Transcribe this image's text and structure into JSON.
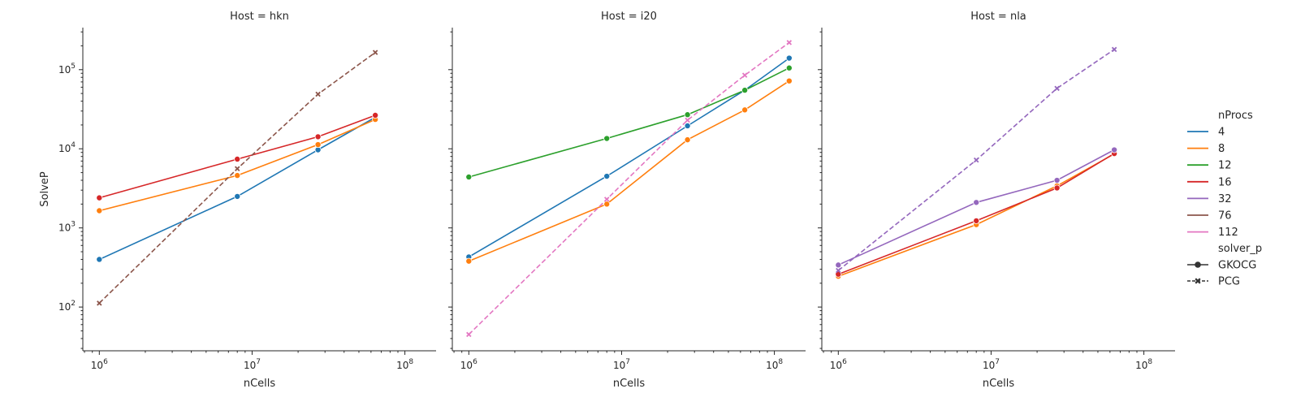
{
  "chart_data": {
    "type": "line",
    "xscale": "log",
    "yscale": "log",
    "xlim": [
      780000,
      160000000
    ],
    "ylim": [
      28,
      340000
    ],
    "xlabel": "nCells",
    "ylabel": "SolveP",
    "grid": false,
    "legend_placement": "right",
    "legend": {
      "hue_title": "nProcs",
      "style_title": "solver_p",
      "hue_entries": [
        {
          "label": "4",
          "color": "#1f77b4"
        },
        {
          "label": "8",
          "color": "#ff7f0e"
        },
        {
          "label": "12",
          "color": "#2ca02c"
        },
        {
          "label": "16",
          "color": "#d62728"
        },
        {
          "label": "32",
          "color": "#9467bd"
        },
        {
          "label": "76",
          "color": "#8c564b"
        },
        {
          "label": "112",
          "color": "#e377c2"
        }
      ],
      "style_entries": [
        {
          "label": "GKOCG",
          "marker": "circle",
          "dash": "solid"
        },
        {
          "label": "PCG",
          "marker": "x",
          "dash": "dashed"
        }
      ]
    },
    "panels": [
      {
        "title": "Host = hkn",
        "series": [
          {
            "nProcs": "4",
            "solver": "GKOCG",
            "x": [
              1000000,
              8000000,
              27000000,
              64000000
            ],
            "y": [
              400,
              2500,
              9700,
              25000
            ]
          },
          {
            "nProcs": "8",
            "solver": "GKOCG",
            "x": [
              1000000,
              8000000,
              27000000,
              64000000
            ],
            "y": [
              1650,
              4600,
              11300,
              23500
            ]
          },
          {
            "nProcs": "16",
            "solver": "GKOCG",
            "x": [
              1000000,
              8000000,
              27000000,
              64000000
            ],
            "y": [
              2400,
              7400,
              14200,
              26500
            ]
          },
          {
            "nProcs": "76",
            "solver": "PCG",
            "x": [
              1000000,
              8000000,
              27000000,
              64000000
            ],
            "y": [
              112,
              5600,
              49000,
              165000
            ]
          }
        ]
      },
      {
        "title": "Host = i20",
        "series": [
          {
            "nProcs": "4",
            "solver": "GKOCG",
            "x": [
              1000000,
              8000000,
              27000000,
              64000000,
              125000000
            ],
            "y": [
              430,
              4500,
              19500,
              55000,
              140000
            ]
          },
          {
            "nProcs": "8",
            "solver": "GKOCG",
            "x": [
              1000000,
              8000000,
              27000000,
              64000000,
              125000000
            ],
            "y": [
              380,
              2000,
              13000,
              31000,
              72000
            ]
          },
          {
            "nProcs": "12",
            "solver": "GKOCG",
            "x": [
              1000000,
              8000000,
              27000000,
              64000000,
              125000000
            ],
            "y": [
              4400,
              13500,
              27000,
              55000,
              105000
            ]
          },
          {
            "nProcs": "112",
            "solver": "PCG",
            "x": [
              1000000,
              8000000,
              27000000,
              64000000,
              125000000
            ],
            "y": [
              45,
              2300,
              23000,
              85000,
              220000
            ]
          }
        ]
      },
      {
        "title": "Host = nla",
        "series": [
          {
            "nProcs": "8",
            "solver": "GKOCG",
            "x": [
              1000000,
              8000000,
              27000000,
              64000000
            ],
            "y": [
              245,
              1100,
              3400,
              8600
            ]
          },
          {
            "nProcs": "16",
            "solver": "GKOCG",
            "x": [
              1000000,
              8000000,
              27000000,
              64000000
            ],
            "y": [
              260,
              1230,
              3200,
              8700
            ]
          },
          {
            "nProcs": "32",
            "solver": "GKOCG",
            "x": [
              1000000,
              8000000,
              27000000,
              64000000
            ],
            "y": [
              340,
              2100,
              4000,
              9700
            ]
          },
          {
            "nProcs": "32",
            "solver": "PCG",
            "x": [
              1000000,
              8000000,
              27000000,
              64000000
            ],
            "y": [
              290,
              7200,
              58000,
              180000
            ]
          }
        ]
      }
    ]
  }
}
